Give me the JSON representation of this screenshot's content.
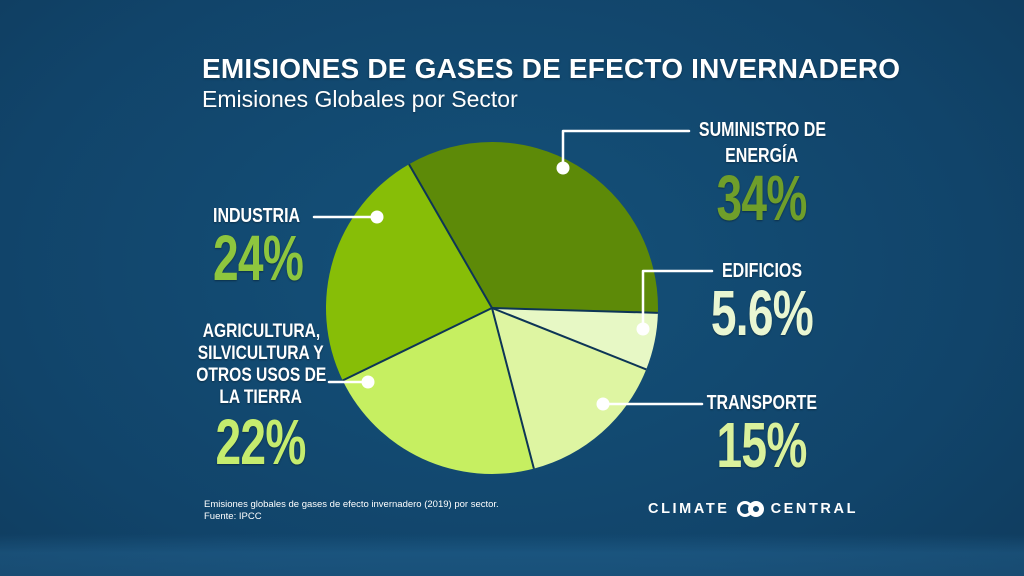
{
  "header": {
    "title": "EMISIONES DE GASES DE EFECTO INVERNADERO",
    "subtitle": "Emisiones Globales por Sector"
  },
  "chart_data": {
    "type": "pie",
    "title": "Emisiones Globales por Sector",
    "units": "%",
    "start_angle_deg": 120,
    "direction": "clockwise",
    "slices": [
      {
        "name": "suministro-de-energia",
        "label_lines": [
          "SUMINISTRO DE",
          "ENERGÍA"
        ],
        "value": 34,
        "value_label": "34%",
        "color": "#5d8a08",
        "value_color": "#6f9e2a"
      },
      {
        "name": "edificios",
        "label_lines": [
          "EDIFICIOS"
        ],
        "value": 5.6,
        "value_label": "5.6%",
        "color": "#e7f8c5",
        "value_color": "#e9f6d2"
      },
      {
        "name": "transporte",
        "label_lines": [
          "TRANSPORTE"
        ],
        "value": 15,
        "value_label": "15%",
        "color": "#def5a2",
        "value_color": "#daf19c"
      },
      {
        "name": "agricultura-silvicultura-y-otros-usos-de-la-tierra",
        "label_lines": [
          "AGRICULTURA,",
          "SILVICULTURA Y",
          "OTROS USOS DE",
          "LA TIERRA"
        ],
        "value": 22,
        "value_label": "22%",
        "color": "#c6ef61",
        "value_color": "#c5ec6e"
      },
      {
        "name": "industria",
        "label_lines": [
          "INDUSTRIA"
        ],
        "value": 24,
        "value_label": "24%",
        "color": "#87be07",
        "value_color": "#8ec63e"
      }
    ]
  },
  "footer": {
    "note_line1": "Emisiones globales de gases de efecto invernadero (2019) por sector.",
    "note_line2": "Fuente: IPCC",
    "brand_word1": "CLIMATE",
    "brand_word2": "CENTRAL"
  },
  "colors": {
    "background_center": "#14517a",
    "background_edge": "#0c2f4e",
    "slice_divider": "#0d3556",
    "callout_line": "#ffffff",
    "text": "#ffffff"
  }
}
